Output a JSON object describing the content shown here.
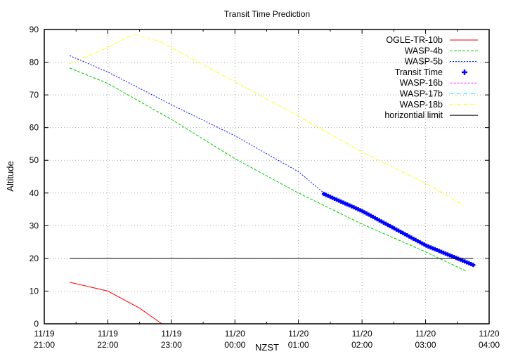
{
  "chart_data": {
    "type": "line",
    "title": "Transit Time Prediction",
    "xlabel": "NZST",
    "ylabel": "Altitude",
    "ylim": [
      0,
      90
    ],
    "xlim_hours": [
      21,
      28
    ],
    "grid": true,
    "legend_position": "top-right inside",
    "y_ticks": [
      "0",
      "10",
      "20",
      "30",
      "40",
      "50",
      "60",
      "70",
      "80",
      "90"
    ],
    "x_ticks": [
      {
        "date": "11/19",
        "time": "21:00"
      },
      {
        "date": "11/19",
        "time": "22:00"
      },
      {
        "date": "11/19",
        "time": "23:00"
      },
      {
        "date": "11/20",
        "time": "00:00"
      },
      {
        "date": "11/20",
        "time": "01:00"
      },
      {
        "date": "11/20",
        "time": "02:00"
      },
      {
        "date": "11/20",
        "time": "03:00"
      },
      {
        "date": "11/20",
        "time": "04:00"
      }
    ],
    "series": [
      {
        "name": "OGLE-TR-10b",
        "color": "#ff0000",
        "style": "solid",
        "points": [
          [
            21.4,
            12.7
          ],
          [
            22.0,
            10.0
          ],
          [
            22.5,
            4.8
          ],
          [
            22.85,
            0
          ]
        ]
      },
      {
        "name": "WASP-4b",
        "color": "#00cc00",
        "style": "dashed",
        "points": [
          [
            21.4,
            78.2
          ],
          [
            22.0,
            73.5
          ],
          [
            23.0,
            62.5
          ],
          [
            24.0,
            50.5
          ],
          [
            25.0,
            40.0
          ],
          [
            26.0,
            30.5
          ],
          [
            27.0,
            22.0
          ],
          [
            27.65,
            16.0
          ]
        ]
      },
      {
        "name": "WASP-5b",
        "color": "#0000ff",
        "style": "dotted",
        "points": [
          [
            21.4,
            82.0
          ],
          [
            22.0,
            77.0
          ],
          [
            23.0,
            67.0
          ],
          [
            24.0,
            57.5
          ],
          [
            25.0,
            46.5
          ],
          [
            25.4,
            40.0
          ]
        ]
      },
      {
        "name": "Transit Time",
        "color": "#0000ff",
        "style": "points",
        "points": [
          [
            25.4,
            39.7
          ],
          [
            26.0,
            34.5
          ],
          [
            27.0,
            24.0
          ],
          [
            27.75,
            18.0
          ]
        ]
      },
      {
        "name": "WASP-16b",
        "color": "#ff00ff",
        "style": "dotted",
        "points": []
      },
      {
        "name": "WASP-17b",
        "color": "#00ffff",
        "style": "dash-dot",
        "points": []
      },
      {
        "name": "WASP-18b",
        "color": "#ffff00",
        "style": "dash-dot",
        "points": [
          [
            21.4,
            79.5
          ],
          [
            22.0,
            84.5
          ],
          [
            22.4,
            88.5
          ],
          [
            22.8,
            86.5
          ],
          [
            23.0,
            84.5
          ],
          [
            24.0,
            74.0
          ],
          [
            25.0,
            63.5
          ],
          [
            26.0,
            52.5
          ],
          [
            27.0,
            43.0
          ],
          [
            27.6,
            36.2
          ]
        ]
      },
      {
        "name": "horizontial limit",
        "color": "#000000",
        "style": "solid",
        "points": [
          [
            21.4,
            20
          ],
          [
            27.75,
            20
          ]
        ]
      }
    ]
  },
  "legend": [
    {
      "label": "OGLE-TR-10b",
      "color": "#ff0000",
      "dash": ""
    },
    {
      "label": "WASP-4b",
      "color": "#00cc00",
      "dash": "4,2"
    },
    {
      "label": "WASP-5b",
      "color": "#0000ff",
      "dash": "2,2"
    },
    {
      "label": "Transit Time",
      "color": "#0000ff",
      "dash": "marker"
    },
    {
      "label": "WASP-16b",
      "color": "#ff00ff",
      "dash": "1,1"
    },
    {
      "label": "WASP-17b",
      "color": "#00ffff",
      "dash": "5,2,1,2"
    },
    {
      "label": "WASP-18b",
      "color": "#ffff00",
      "dash": "5,2,1,2"
    },
    {
      "label": "horizontial limit",
      "color": "#000000",
      "dash": ""
    }
  ]
}
